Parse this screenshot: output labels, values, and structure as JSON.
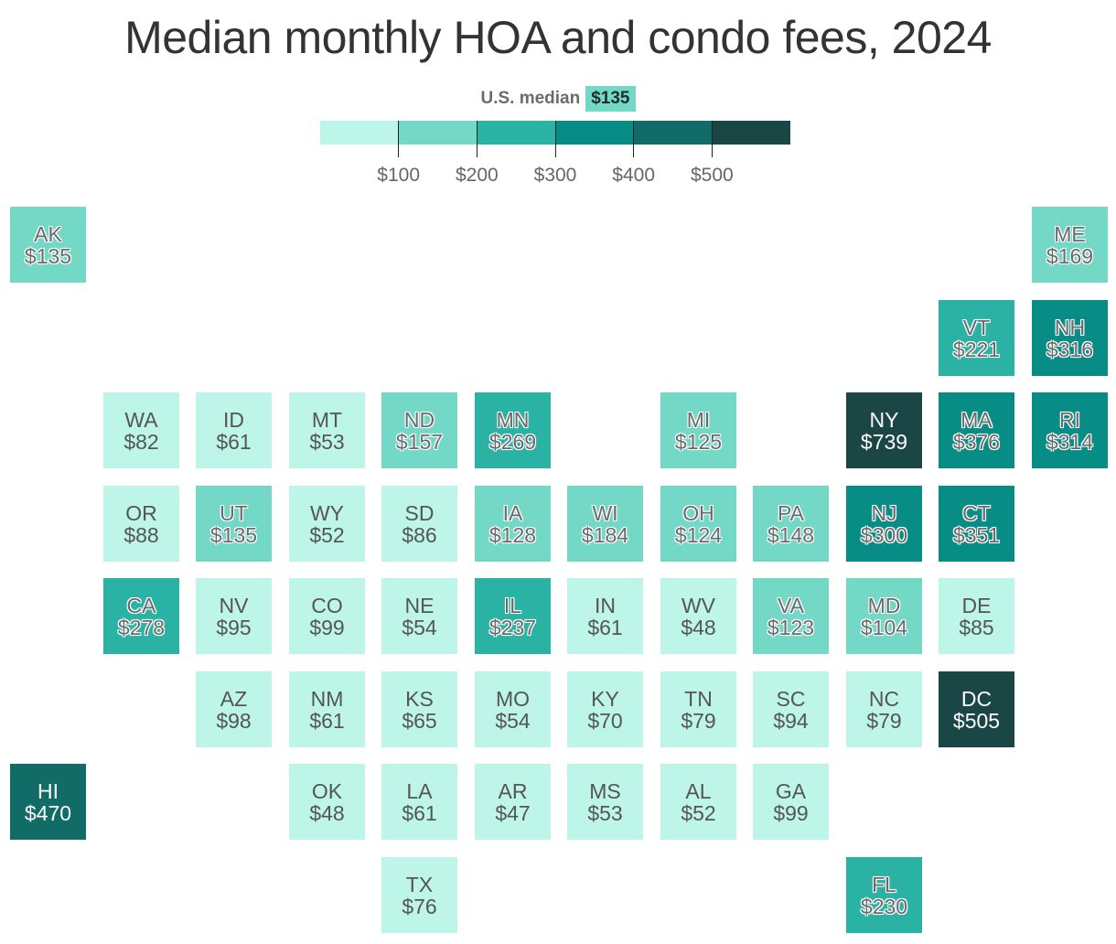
{
  "title": "Median monthly HOA and condo fees, 2024",
  "median": {
    "label": "U.S. median",
    "value": "$135",
    "color": "#74d8c7"
  },
  "legend": {
    "bins": [
      "#bdf6e8",
      "#74d8c7",
      "#2ab3a5",
      "#078d85",
      "#116b66",
      "#1b4646"
    ],
    "ticks": [
      "$100",
      "$200",
      "$300",
      "$400",
      "$500"
    ]
  },
  "chart_data": {
    "type": "tile-map",
    "title": "Median monthly HOA and condo fees, 2024",
    "unit": "USD per month",
    "bins": [
      0,
      100,
      200,
      300,
      400,
      500
    ],
    "tiles": [
      {
        "state": "AK",
        "label": "$135",
        "value": 135,
        "col": 0,
        "row": 0
      },
      {
        "state": "ME",
        "label": "$169",
        "value": 169,
        "col": 11,
        "row": 0
      },
      {
        "state": "VT",
        "label": "$221",
        "value": 221,
        "col": 10,
        "row": 1
      },
      {
        "state": "NH",
        "label": "$316",
        "value": 316,
        "col": 11,
        "row": 1
      },
      {
        "state": "WA",
        "label": "$82",
        "value": 82,
        "col": 1,
        "row": 2
      },
      {
        "state": "ID",
        "label": "$61",
        "value": 61,
        "col": 2,
        "row": 2
      },
      {
        "state": "MT",
        "label": "$53",
        "value": 53,
        "col": 3,
        "row": 2
      },
      {
        "state": "ND",
        "label": "$157",
        "value": 157,
        "col": 4,
        "row": 2
      },
      {
        "state": "MN",
        "label": "$269",
        "value": 269,
        "col": 5,
        "row": 2
      },
      {
        "state": "MI",
        "label": "$125",
        "value": 125,
        "col": 7,
        "row": 2
      },
      {
        "state": "NY",
        "label": "$739",
        "value": 739,
        "col": 9,
        "row": 2
      },
      {
        "state": "MA",
        "label": "$376",
        "value": 376,
        "col": 10,
        "row": 2
      },
      {
        "state": "RI",
        "label": "$314",
        "value": 314,
        "col": 11,
        "row": 2
      },
      {
        "state": "OR",
        "label": "$88",
        "value": 88,
        "col": 1,
        "row": 3
      },
      {
        "state": "UT",
        "label": "$135",
        "value": 135,
        "col": 2,
        "row": 3
      },
      {
        "state": "WY",
        "label": "$52",
        "value": 52,
        "col": 3,
        "row": 3
      },
      {
        "state": "SD",
        "label": "$86",
        "value": 86,
        "col": 4,
        "row": 3
      },
      {
        "state": "IA",
        "label": "$128",
        "value": 128,
        "col": 5,
        "row": 3
      },
      {
        "state": "WI",
        "label": "$184",
        "value": 184,
        "col": 6,
        "row": 3
      },
      {
        "state": "OH",
        "label": "$124",
        "value": 124,
        "col": 7,
        "row": 3
      },
      {
        "state": "PA",
        "label": "$148",
        "value": 148,
        "col": 8,
        "row": 3
      },
      {
        "state": "NJ",
        "label": "$300",
        "value": 300,
        "col": 9,
        "row": 3
      },
      {
        "state": "CT",
        "label": "$351",
        "value": 351,
        "col": 10,
        "row": 3
      },
      {
        "state": "CA",
        "label": "$278",
        "value": 278,
        "col": 1,
        "row": 4
      },
      {
        "state": "NV",
        "label": "$95",
        "value": 95,
        "col": 2,
        "row": 4
      },
      {
        "state": "CO",
        "label": "$99",
        "value": 99,
        "col": 3,
        "row": 4
      },
      {
        "state": "NE",
        "label": "$54",
        "value": 54,
        "col": 4,
        "row": 4
      },
      {
        "state": "IL",
        "label": "$237",
        "value": 237,
        "col": 5,
        "row": 4
      },
      {
        "state": "IN",
        "label": "$61",
        "value": 61,
        "col": 6,
        "row": 4
      },
      {
        "state": "WV",
        "label": "$48",
        "value": 48,
        "col": 7,
        "row": 4
      },
      {
        "state": "VA",
        "label": "$123",
        "value": 123,
        "col": 8,
        "row": 4
      },
      {
        "state": "MD",
        "label": "$104",
        "value": 104,
        "col": 9,
        "row": 4
      },
      {
        "state": "DE",
        "label": "$85",
        "value": 85,
        "col": 10,
        "row": 4
      },
      {
        "state": "AZ",
        "label": "$98",
        "value": 98,
        "col": 2,
        "row": 5
      },
      {
        "state": "NM",
        "label": "$61",
        "value": 61,
        "col": 3,
        "row": 5
      },
      {
        "state": "KS",
        "label": "$65",
        "value": 65,
        "col": 4,
        "row": 5
      },
      {
        "state": "MO",
        "label": "$54",
        "value": 54,
        "col": 5,
        "row": 5
      },
      {
        "state": "KY",
        "label": "$70",
        "value": 70,
        "col": 6,
        "row": 5
      },
      {
        "state": "TN",
        "label": "$79",
        "value": 79,
        "col": 7,
        "row": 5
      },
      {
        "state": "SC",
        "label": "$94",
        "value": 94,
        "col": 8,
        "row": 5
      },
      {
        "state": "NC",
        "label": "$79",
        "value": 79,
        "col": 9,
        "row": 5
      },
      {
        "state": "DC",
        "label": "$505",
        "value": 505,
        "col": 10,
        "row": 5
      },
      {
        "state": "HI",
        "label": "$470",
        "value": 470,
        "col": 0,
        "row": 6
      },
      {
        "state": "OK",
        "label": "$48",
        "value": 48,
        "col": 3,
        "row": 6
      },
      {
        "state": "LA",
        "label": "$61",
        "value": 61,
        "col": 4,
        "row": 6
      },
      {
        "state": "AR",
        "label": "$47",
        "value": 47,
        "col": 5,
        "row": 6
      },
      {
        "state": "MS",
        "label": "$53",
        "value": 53,
        "col": 6,
        "row": 6
      },
      {
        "state": "AL",
        "label": "$52",
        "value": 52,
        "col": 7,
        "row": 6
      },
      {
        "state": "GA",
        "label": "$99",
        "value": 99,
        "col": 8,
        "row": 6
      },
      {
        "state": "TX",
        "label": "$76",
        "value": 76,
        "col": 4,
        "row": 7
      },
      {
        "state": "FL",
        "label": "$230",
        "value": 230,
        "col": 9,
        "row": 7
      }
    ]
  }
}
